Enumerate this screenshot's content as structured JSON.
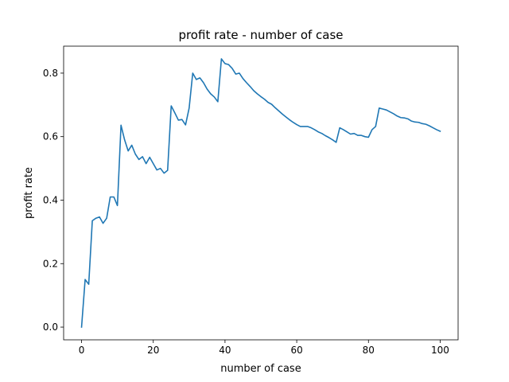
{
  "chart_data": {
    "type": "line",
    "title": "profit rate - number of case",
    "xlabel": "number of case",
    "ylabel": "profit rate",
    "xlim": [
      -5,
      105
    ],
    "ylim": [
      -0.04,
      0.885
    ],
    "xticks": [
      0,
      20,
      40,
      60,
      80,
      100
    ],
    "yticks": [
      0.0,
      0.2,
      0.4,
      0.6,
      0.8
    ],
    "xtick_labels": [
      "0",
      "20",
      "40",
      "60",
      "80",
      "100"
    ],
    "ytick_labels": [
      "0.0",
      "0.2",
      "0.4",
      "0.6",
      "0.8"
    ],
    "grid": false,
    "legend": "none",
    "series_color": "#1f77b4",
    "series": [
      {
        "x": [
          0,
          1,
          2,
          3,
          4,
          5,
          6,
          7,
          8,
          9,
          10,
          11,
          12,
          13,
          14,
          15,
          16,
          17,
          18,
          19,
          20,
          21,
          22,
          23,
          24,
          25,
          26,
          27,
          28,
          29,
          30,
          31,
          32,
          33,
          34,
          35,
          36,
          37,
          38,
          39,
          40,
          41,
          42,
          43,
          44,
          45,
          46,
          47,
          48,
          49,
          50,
          51,
          52,
          53,
          54,
          55,
          56,
          57,
          58,
          59,
          60,
          61,
          62,
          63,
          64,
          65,
          66,
          67,
          68,
          69,
          70,
          71,
          72,
          73,
          74,
          75,
          76,
          77,
          78,
          79,
          80,
          81,
          82,
          83,
          84,
          85,
          86,
          87,
          88,
          89,
          90,
          91,
          92,
          93,
          94,
          95,
          96,
          97,
          98,
          99,
          100
        ],
        "values": [
          0.0,
          0.15,
          0.135,
          0.335,
          0.343,
          0.347,
          0.327,
          0.343,
          0.41,
          0.41,
          0.383,
          0.636,
          0.59,
          0.555,
          0.573,
          0.545,
          0.528,
          0.537,
          0.515,
          0.535,
          0.515,
          0.495,
          0.5,
          0.485,
          0.494,
          0.697,
          0.675,
          0.652,
          0.654,
          0.637,
          0.69,
          0.8,
          0.78,
          0.785,
          0.77,
          0.75,
          0.735,
          0.725,
          0.71,
          0.845,
          0.83,
          0.827,
          0.815,
          0.797,
          0.8,
          0.783,
          0.77,
          0.758,
          0.745,
          0.735,
          0.726,
          0.718,
          0.708,
          0.702,
          0.691,
          0.681,
          0.671,
          0.662,
          0.653,
          0.645,
          0.638,
          0.632,
          0.632,
          0.632,
          0.628,
          0.622,
          0.615,
          0.61,
          0.603,
          0.597,
          0.59,
          0.582,
          0.628,
          0.622,
          0.615,
          0.608,
          0.61,
          0.604,
          0.604,
          0.6,
          0.598,
          0.622,
          0.632,
          0.69,
          0.687,
          0.684,
          0.678,
          0.672,
          0.665,
          0.66,
          0.659,
          0.656,
          0.649,
          0.646,
          0.645,
          0.641,
          0.639,
          0.634,
          0.628,
          0.622,
          0.617
        ]
      }
    ]
  }
}
